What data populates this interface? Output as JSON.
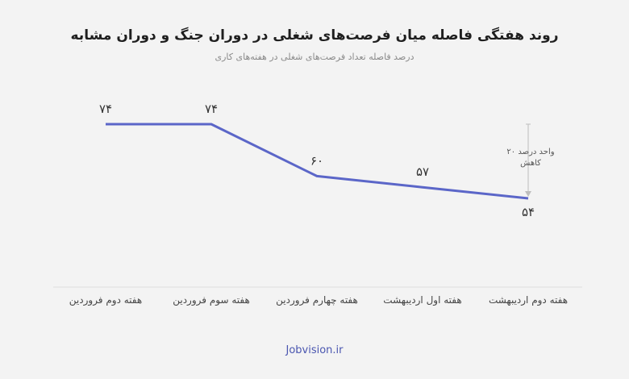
{
  "chart_data": {
    "type": "line",
    "title": "روند هفتگی فاصله میان فرصت‌های شغلی در دوران جنگ و دوران مشابه",
    "subtitle": "درصد فاصله تعداد فرصت‌های شغلی در هفته‌های کاری",
    "categories": [
      "هفته دوم فروردین",
      "هفته سوم فروردین",
      "هفته چهارم فروردین",
      "هفته اول اردیبهشت",
      "هفته دوم اردیبهشت"
    ],
    "values": [
      74,
      74,
      60,
      57,
      54
    ],
    "value_labels": [
      "۷۴",
      "۷۴",
      "۶۰",
      "۵۷",
      "۵۴"
    ],
    "ylim": [
      30,
      80
    ],
    "annotation": "۲۰ واحد درصد کاهش",
    "line_color": "#5b66c8",
    "grid": false
  },
  "footer": "Jobvision.ir"
}
